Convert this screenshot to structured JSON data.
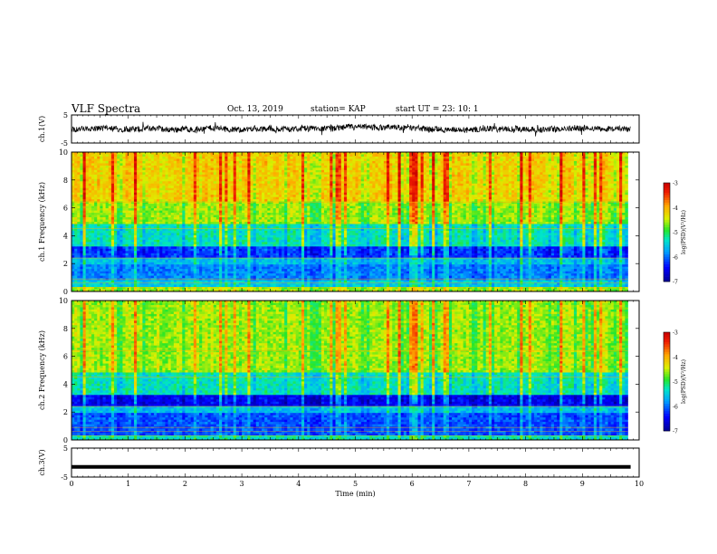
{
  "header": {
    "title": "VLF Spectra",
    "date": "Oct. 13, 2019",
    "station": "station= KAP",
    "start": "start  UT =   23: 10: 1"
  },
  "chart_data": [
    {
      "type": "line",
      "name": "ch1-waveform",
      "ylabel": "ch.1(V)",
      "ylim": [
        -5,
        5
      ],
      "yticks": [
        "5",
        "-5"
      ],
      "xlim": [
        0,
        10
      ],
      "trace_color": "#000000",
      "baseline_v": 0.1,
      "noise_amp_v": 1.5
    },
    {
      "type": "heatmap",
      "name": "ch1-spectrogram",
      "ylabel": "ch.1 Frequency (kHz)",
      "ylim": [
        0,
        10
      ],
      "yticks": [
        "0",
        "2",
        "4",
        "6",
        "8",
        "10"
      ],
      "xlim": [
        0,
        9.8
      ],
      "colorbar": {
        "label": "log(PSD)(V²/Hz)",
        "range": [
          -7,
          -3
        ],
        "ticks": [
          "-3",
          "-4",
          "-5",
          "-6",
          "-7"
        ]
      },
      "bands": [
        {
          "f": [
            0,
            0.3
          ],
          "v": -4.6
        },
        {
          "f": [
            0.3,
            0.8
          ],
          "v": -5.5
        },
        {
          "f": [
            0.8,
            1.9
          ],
          "v": -5.9
        },
        {
          "f": [
            1.9,
            2.5
          ],
          "v": -5.6
        },
        {
          "f": [
            2.5,
            3.3
          ],
          "v": -6.2
        },
        {
          "f": [
            3.3,
            4.9
          ],
          "v": -5.3
        },
        {
          "f": [
            4.9,
            6.4
          ],
          "v": -4.6
        },
        {
          "f": [
            6.4,
            10
          ],
          "v": -4.2
        }
      ]
    },
    {
      "type": "heatmap",
      "name": "ch2-spectrogram",
      "ylabel": "ch.2 Frequency (kHz)",
      "ylim": [
        0,
        10
      ],
      "yticks": [
        "0",
        "2",
        "4",
        "6",
        "8",
        "10"
      ],
      "xlim": [
        0,
        9.8
      ],
      "colorbar": {
        "label": "log(PSD)(V²/Hz)",
        "range": [
          -7,
          -3
        ],
        "ticks": [
          "-3",
          "-4",
          "-5",
          "-6",
          "-7"
        ]
      },
      "bands": [
        {
          "f": [
            0,
            0.3
          ],
          "v": -5.3
        },
        {
          "f": [
            0.3,
            1.9
          ],
          "v": -6.1
        },
        {
          "f": [
            1.9,
            2.5
          ],
          "v": -5.6
        },
        {
          "f": [
            2.5,
            3.2
          ],
          "v": -6.5
        },
        {
          "f": [
            3.2,
            4.8
          ],
          "v": -5.3
        },
        {
          "f": [
            4.8,
            10
          ],
          "v": -4.6
        }
      ]
    },
    {
      "type": "line",
      "name": "ch3-waveform",
      "ylabel": "ch.3(V)",
      "ylim": [
        -5,
        5
      ],
      "yticks": [
        "5",
        "-5"
      ],
      "xlim": [
        0,
        10
      ],
      "trace_color": "#000000",
      "level_v": -1.5
    }
  ],
  "x_axis": {
    "label": "Time  (min)",
    "ticks": [
      "0",
      "1",
      "2",
      "3",
      "4",
      "5",
      "6",
      "7",
      "8",
      "9",
      "10"
    ]
  }
}
